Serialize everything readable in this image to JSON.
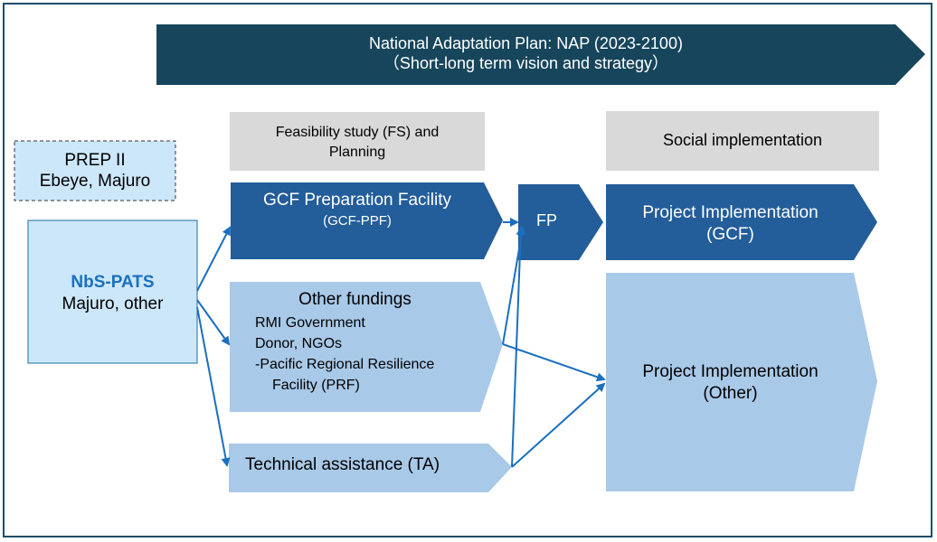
{
  "colors": {
    "banner": "#17465c",
    "dark_blue": "#235d9a",
    "light_blue": "#a9c9e8",
    "pale_blue": "#cce7fa",
    "gray_header": "#d9d9d9",
    "arrow": "#1a6fc0",
    "frame": "#1f4e6b"
  },
  "banner": {
    "line1": "National Adaptation Plan: NAP (2023-2100)",
    "line2": "（Short-long term vision and strategy）"
  },
  "headers": {
    "fs_line1": "Feasibility study (FS) and",
    "fs_line2": "Planning",
    "social": "Social implementation"
  },
  "prep": {
    "line1": "PREP II",
    "line2": "Ebeye, Majuro"
  },
  "nbs": {
    "title": "NbS-PATS",
    "subtitle": "Majuro, other"
  },
  "gcf_ppf": {
    "line1": "GCF Preparation Facility",
    "line2": "(GCF-PPF)"
  },
  "other_fundings": {
    "title": "Other fundings",
    "items": [
      "RMI Government",
      "Donor, NGOs",
      "-Pacific Regional Resilience",
      "Facility (PRF)"
    ]
  },
  "ta": {
    "label": "Technical assistance (TA)"
  },
  "fp": {
    "label": "FP"
  },
  "impl_gcf": {
    "line1": "Project Implementation",
    "line2": "(GCF)"
  },
  "impl_other": {
    "line1": "Project Implementation",
    "line2": "(Other)"
  }
}
